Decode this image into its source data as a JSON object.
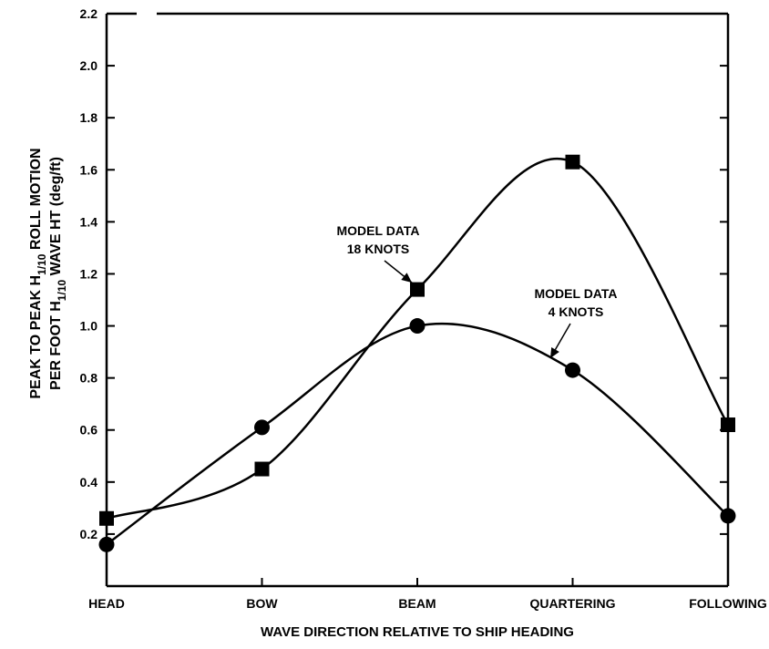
{
  "chart_data": {
    "type": "line",
    "categories": [
      "HEAD",
      "BOW",
      "BEAM",
      "QUARTERING",
      "FOLLOWING"
    ],
    "xlabel": "WAVE DIRECTION RELATIVE TO SHIP HEADING",
    "ylabel": {
      "line1": {
        "main": "PEAK TO PEAK H",
        "sub": "1/10",
        "rest": " ROLL MOTION"
      },
      "line2": {
        "main": "PER FOOT H",
        "sub": "1/10",
        "rest": " WAVE HT (deg/ft)"
      }
    },
    "ylim": [
      0,
      2.2
    ],
    "yticks": [
      "0.2",
      "0.4",
      "0.6",
      "0.8",
      "1.0",
      "1.2",
      "1.4",
      "1.6",
      "1.8",
      "2.0",
      "2.2"
    ],
    "grid": false,
    "series": [
      {
        "name": "MODEL DATA 18 KNOTS",
        "marker": "square",
        "values": [
          0.26,
          0.45,
          1.14,
          1.63,
          0.62
        ]
      },
      {
        "name": "MODEL DATA 4 KNOTS",
        "marker": "circle",
        "values": [
          0.16,
          0.61,
          1.0,
          0.83,
          0.27
        ]
      }
    ],
    "annotations": [
      {
        "lines": [
          "MODEL DATA",
          "18 KNOTS"
        ],
        "series": 0,
        "point_index": 2
      },
      {
        "lines": [
          "MODEL DATA",
          "4 KNOTS"
        ],
        "series": 1,
        "point_index": 3
      }
    ]
  }
}
